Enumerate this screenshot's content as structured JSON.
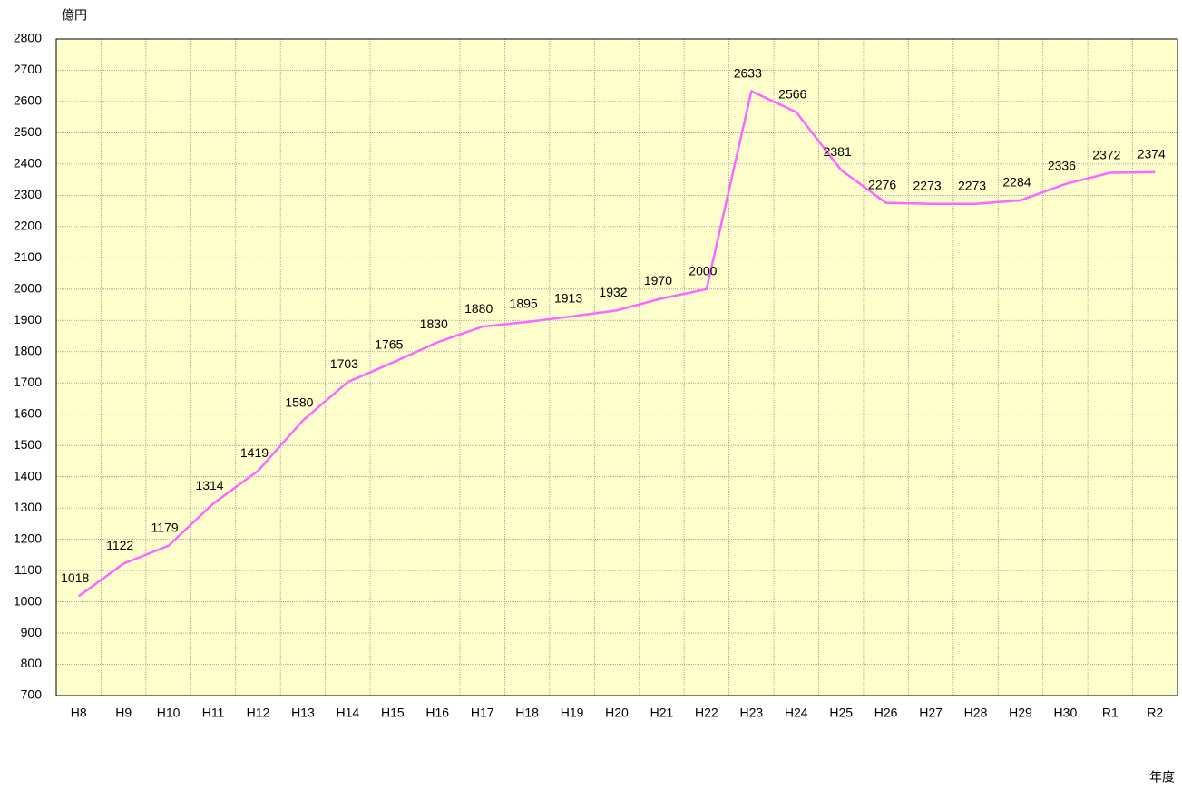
{
  "chart_data": {
    "type": "line",
    "y_label": "億円",
    "x_label": "年度",
    "categories": [
      "H8",
      "H9",
      "H10",
      "H11",
      "H12",
      "H13",
      "H14",
      "H15",
      "H16",
      "H17",
      "H18",
      "H19",
      "H20",
      "H21",
      "H22",
      "H23",
      "H24",
      "H25",
      "H26",
      "H27",
      "H28",
      "H29",
      "H30",
      "R1",
      "R2"
    ],
    "values": [
      1018,
      1122,
      1179,
      1314,
      1419,
      1580,
      1703,
      1765,
      1830,
      1880,
      1895,
      1913,
      1932,
      1970,
      2000,
      2633,
      2566,
      2381,
      2276,
      2273,
      2273,
      2284,
      2336,
      2372,
      2374
    ],
    "color": "#ff66ff",
    "ylim": [
      700,
      2800
    ],
    "yticks": [
      700,
      800,
      900,
      1000,
      1100,
      1200,
      1300,
      1400,
      1500,
      1600,
      1700,
      1800,
      1900,
      2000,
      2100,
      2200,
      2300,
      2400,
      2500,
      2600,
      2700,
      2800
    ],
    "grid": true
  }
}
